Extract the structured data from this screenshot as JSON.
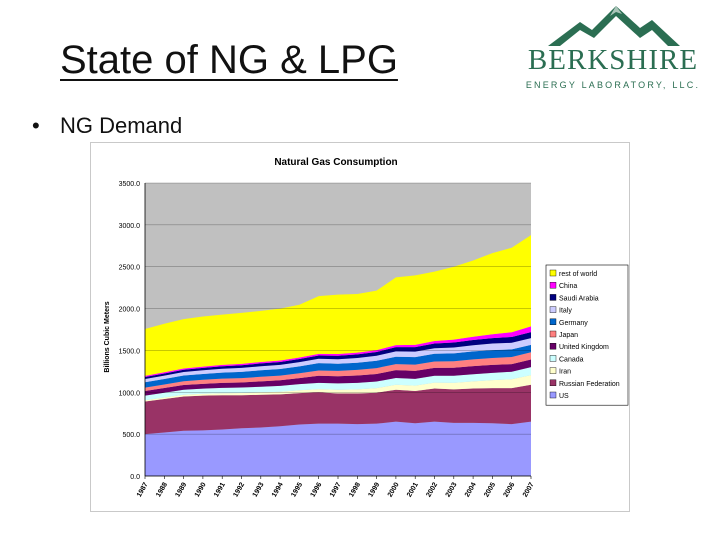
{
  "slide": {
    "title": "State of NG & LPG",
    "bullet": "NG Demand",
    "bullet_symbol": "•"
  },
  "logo": {
    "name": "BERKSHIRE",
    "subtitle": "ENERGY LABORATORY, LLC.",
    "color": "#2b6e52"
  },
  "chart_data": {
    "type": "area",
    "stacked": true,
    "title": "Natural Gas Consumption",
    "ylabel": "Billions Cubic Meters",
    "xlabel": "",
    "ylim": [
      0,
      3500
    ],
    "ytick_labels": [
      "0.0",
      "500.0",
      "1000.0",
      "1500.0",
      "2000.0",
      "2500.0",
      "3000.0",
      "3500.0"
    ],
    "categories": [
      "1987",
      "1988",
      "1989",
      "1990",
      "1991",
      "1992",
      "1993",
      "1994",
      "1995",
      "1996",
      "1997",
      "1998",
      "1999",
      "2000",
      "2001",
      "2002",
      "2003",
      "2004",
      "2005",
      "2006",
      "2007"
    ],
    "grid": true,
    "legend_position": "right",
    "plot_background": "#c0c0c0",
    "series": [
      {
        "name": "US",
        "color": "#9999ff",
        "values": [
          500,
          520,
          540,
          545,
          555,
          570,
          580,
          595,
          615,
          625,
          625,
          620,
          625,
          650,
          630,
          650,
          635,
          635,
          630,
          620,
          650
        ]
      },
      {
        "name": "Russian Federation",
        "color": "#993366",
        "values": [
          390,
          400,
          410,
          415,
          410,
          395,
          390,
          380,
          375,
          375,
          360,
          365,
          370,
          380,
          385,
          395,
          400,
          410,
          420,
          430,
          440
        ]
      },
      {
        "name": "Iran",
        "color": "#ffffcc",
        "values": [
          15,
          17,
          20,
          22,
          24,
          26,
          28,
          32,
          35,
          38,
          45,
          50,
          55,
          60,
          65,
          70,
          78,
          85,
          95,
          105,
          115
        ]
      },
      {
        "name": "Canada",
        "color": "#ccffff",
        "values": [
          55,
          58,
          60,
          62,
          64,
          66,
          68,
          70,
          72,
          75,
          76,
          78,
          79,
          80,
          80,
          82,
          85,
          85,
          87,
          90,
          95
        ]
      },
      {
        "name": "United Kingdom",
        "color": "#660066",
        "values": [
          55,
          56,
          57,
          57,
          60,
          60,
          65,
          66,
          72,
          85,
          86,
          88,
          90,
          95,
          96,
          95,
          95,
          98,
          95,
          92,
          91
        ]
      },
      {
        "name": "Japan",
        "color": "#ff8080",
        "values": [
          40,
          42,
          45,
          48,
          50,
          52,
          54,
          56,
          58,
          62,
          64,
          66,
          70,
          72,
          74,
          76,
          78,
          80,
          82,
          84,
          88
        ]
      },
      {
        "name": "Germany",
        "color": "#0066cc",
        "values": [
          65,
          66,
          68,
          70,
          72,
          75,
          78,
          79,
          82,
          88,
          85,
          86,
          87,
          88,
          90,
          92,
          94,
          95,
          95,
          92,
          88
        ]
      },
      {
        "name": "Italy",
        "color": "#ccccff",
        "values": [
          38,
          40,
          42,
          44,
          46,
          47,
          48,
          49,
          51,
          52,
          54,
          56,
          60,
          64,
          66,
          66,
          70,
          74,
          78,
          78,
          80
        ]
      },
      {
        "name": "Saudi Arabia",
        "color": "#000080",
        "values": [
          25,
          26,
          27,
          28,
          30,
          32,
          34,
          35,
          38,
          40,
          42,
          44,
          46,
          50,
          54,
          56,
          60,
          62,
          65,
          70,
          72
        ]
      },
      {
        "name": "China",
        "color": "#ff00ff",
        "values": [
          13,
          14,
          15,
          15,
          16,
          16,
          17,
          17,
          18,
          19,
          20,
          21,
          22,
          24,
          27,
          30,
          34,
          40,
          46,
          56,
          68
        ]
      },
      {
        "name": "rest of world",
        "color": "#ffff00",
        "values": [
          560,
          580,
          590,
          600,
          600,
          610,
          610,
          620,
          630,
          690,
          710,
          700,
          710,
          810,
          830,
          830,
          870,
          910,
          970,
          1010,
          1090
        ]
      }
    ]
  }
}
